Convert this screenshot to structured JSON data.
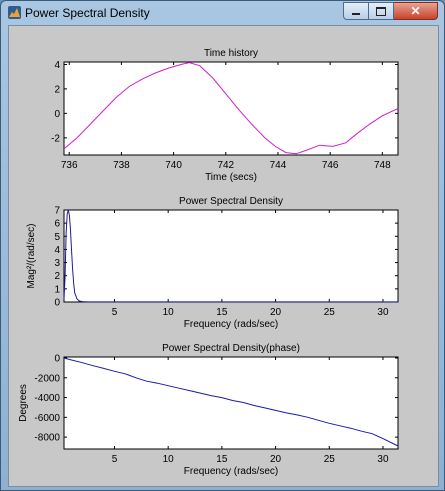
{
  "window": {
    "title": "Power Spectral Density",
    "controls": {
      "minimize_icon": "minimize-icon",
      "maximize_icon": "maximize-icon",
      "close_icon": "close-icon"
    }
  },
  "chart_data": [
    {
      "type": "line",
      "title": "Time history",
      "xlabel": "Time (secs)",
      "ylabel": "",
      "xlim": [
        735.8,
        748.6
      ],
      "ylim": [
        -3.4,
        4.2
      ],
      "xticks": [
        736,
        738,
        740,
        742,
        744,
        746,
        748
      ],
      "yticks": [
        -2,
        0,
        2,
        4
      ],
      "color": "#d11fd1",
      "grid": false,
      "series": [
        {
          "x": [
            735.8,
            736.3,
            736.8,
            737.3,
            737.8,
            738.3,
            738.8,
            739.3,
            739.8,
            740.3,
            740.6,
            741.0,
            741.5,
            742.0,
            742.5,
            743.0,
            743.5,
            743.9,
            744.3,
            744.7,
            745.1,
            745.6,
            746.1,
            746.6,
            747.0,
            747.5,
            748.0,
            748.6
          ],
          "y": [
            -2.9,
            -2.0,
            -0.9,
            0.2,
            1.3,
            2.2,
            2.8,
            3.3,
            3.7,
            4.0,
            4.15,
            3.9,
            2.9,
            1.6,
            0.3,
            -0.9,
            -2.0,
            -2.7,
            -3.2,
            -3.3,
            -3.0,
            -2.6,
            -2.7,
            -2.4,
            -1.7,
            -0.9,
            -0.2,
            0.4
          ]
        }
      ]
    },
    {
      "type": "line",
      "title": "Power Spectral Density",
      "xlabel": "Frequency (rads/sec)",
      "ylabel": "Mag²/(rad/sec)",
      "xlim": [
        0.3,
        31.4
      ],
      "ylim": [
        0,
        7
      ],
      "xticks": [
        5,
        10,
        15,
        20,
        25,
        30
      ],
      "yticks": [
        0,
        1,
        2,
        3,
        4,
        5,
        6,
        7
      ],
      "color": "#1a1aa8",
      "grid": false,
      "series": [
        {
          "x": [
            0.3,
            0.4,
            0.5,
            0.6,
            0.7,
            0.8,
            0.9,
            1.0,
            1.1,
            1.2,
            1.3,
            1.5,
            1.7,
            2.0,
            2.5,
            3,
            5,
            10,
            20,
            31.4
          ],
          "y": [
            0.2,
            2.0,
            5.2,
            6.7,
            7.0,
            6.6,
            5.6,
            4.0,
            2.5,
            1.4,
            0.7,
            0.25,
            0.08,
            0.03,
            0.01,
            0.01,
            0.01,
            0.01,
            0.01,
            0.01
          ]
        }
      ]
    },
    {
      "type": "line",
      "title": "Power Spectral Density(phase)",
      "xlabel": "Frequency (rads/sec)",
      "ylabel": "Degrees",
      "xlim": [
        0.3,
        31.4
      ],
      "ylim": [
        -9200,
        100
      ],
      "xticks": [
        5,
        10,
        15,
        20,
        25,
        30
      ],
      "yticks": [
        0,
        -2000,
        -4000,
        -6000,
        -8000
      ],
      "color": "#1a1aa8",
      "grid": false,
      "series": [
        {
          "x": [
            0.3,
            1,
            2,
            3,
            4,
            5,
            6,
            7,
            8,
            9,
            10,
            11,
            12,
            13,
            14,
            15,
            16,
            17,
            18,
            19,
            20,
            21,
            22,
            23,
            24,
            25,
            26,
            27,
            28,
            29,
            30,
            31.4
          ],
          "y": [
            0,
            -200,
            -480,
            -780,
            -1050,
            -1350,
            -1600,
            -2000,
            -2350,
            -2550,
            -2800,
            -3050,
            -3300,
            -3550,
            -3800,
            -4000,
            -4300,
            -4500,
            -4800,
            -5050,
            -5300,
            -5550,
            -5750,
            -6000,
            -6300,
            -6600,
            -6850,
            -7100,
            -7400,
            -7650,
            -8150,
            -8900
          ]
        }
      ]
    }
  ]
}
